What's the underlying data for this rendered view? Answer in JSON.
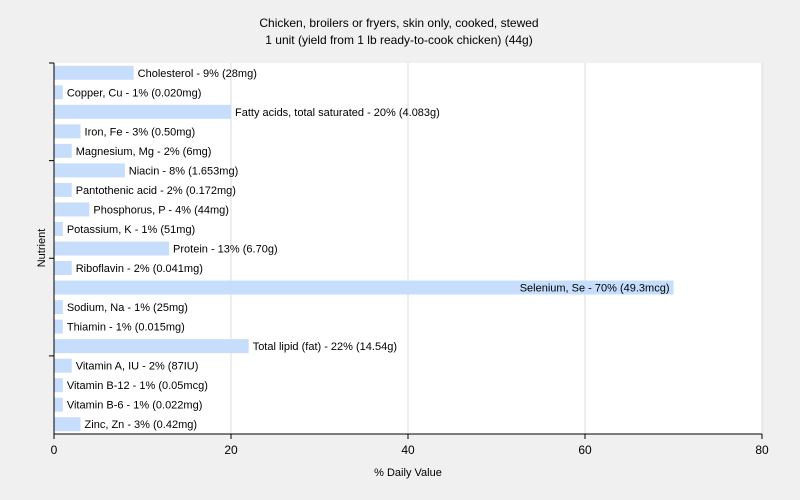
{
  "chart_data": {
    "type": "bar",
    "orientation": "horizontal",
    "title": "Chicken, broilers or fryers, skin only, cooked, stewed",
    "subtitle": "1 unit (yield from 1 lb ready-to-cook chicken) (44g)",
    "xlabel": "% Daily Value",
    "ylabel": "Nutrient",
    "xlim": [
      0,
      80
    ],
    "xticks": [
      "0",
      "20",
      "40",
      "60",
      "80"
    ],
    "grid": true,
    "bar_color": "#c6defc",
    "categories": [
      "Cholesterol",
      "Copper, Cu",
      "Fatty acids, total saturated",
      "Iron, Fe",
      "Magnesium, Mg",
      "Niacin",
      "Pantothenic acid",
      "Phosphorus, P",
      "Potassium, K",
      "Protein",
      "Riboflavin",
      "Selenium, Se",
      "Sodium, Na",
      "Thiamin",
      "Total lipid (fat)",
      "Vitamin A, IU",
      "Vitamin B-12",
      "Vitamin B-6",
      "Zinc, Zn"
    ],
    "values": [
      9,
      1,
      20,
      3,
      2,
      8,
      2,
      4,
      1,
      13,
      2,
      70,
      1,
      1,
      22,
      2,
      1,
      1,
      3
    ],
    "labels": [
      "Cholesterol - 9% (28mg)",
      "Copper, Cu - 1% (0.020mg)",
      "Fatty acids, total saturated - 20% (4.083g)",
      "Iron, Fe - 3% (0.50mg)",
      "Magnesium, Mg - 2% (6mg)",
      "Niacin - 8% (1.653mg)",
      "Pantothenic acid - 2% (0.172mg)",
      "Phosphorus, P - 4% (44mg)",
      "Potassium, K - 1% (51mg)",
      "Protein - 13% (6.70g)",
      "Riboflavin - 2% (0.041mg)",
      "Selenium, Se - 70% (49.3mcg)",
      "Sodium, Na - 1% (25mg)",
      "Thiamin - 1% (0.015mg)",
      "Total lipid (fat) - 22% (14.54g)",
      "Vitamin A, IU - 2% (87IU)",
      "Vitamin B-12 - 1% (0.05mcg)",
      "Vitamin B-6 - 1% (0.022mg)",
      "Zinc, Zn - 3% (0.42mg)"
    ]
  }
}
